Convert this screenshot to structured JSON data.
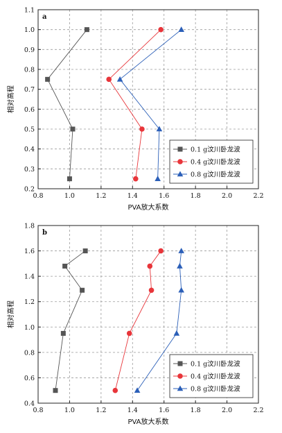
{
  "chart_data": [
    {
      "type": "line",
      "panel_label": "a",
      "xlabel": "PVA放大系数",
      "ylabel": "相对高程",
      "xlim": [
        0.8,
        2.2
      ],
      "ylim": [
        0.2,
        1.1
      ],
      "xticks": [
        "0.8",
        "1.0",
        "1.2",
        "1.4",
        "1.6",
        "1.8",
        "2.0",
        "2.2"
      ],
      "yticks": [
        "0.2",
        "0.3",
        "0.4",
        "0.5",
        "0.6",
        "0.7",
        "0.8",
        "0.9",
        "1.0",
        "1.1"
      ],
      "grid": true,
      "legend_position": "bottom-right",
      "series": [
        {
          "name": "0.1 g汶川卧龙波",
          "color": "#555555",
          "marker": "square",
          "points": [
            [
              1.11,
              1.0
            ],
            [
              0.86,
              0.75
            ],
            [
              1.02,
              0.5
            ],
            [
              1.0,
              0.25
            ]
          ]
        },
        {
          "name": "0.4 g汶川卧龙波",
          "color": "#e8353a",
          "marker": "circle",
          "points": [
            [
              1.58,
              1.0
            ],
            [
              1.25,
              0.75
            ],
            [
              1.46,
              0.5
            ],
            [
              1.42,
              0.25
            ]
          ]
        },
        {
          "name": "0.8 g汶川卧龙波",
          "color": "#2b5fb8",
          "marker": "triangle",
          "points": [
            [
              1.71,
              1.0
            ],
            [
              1.32,
              0.75
            ],
            [
              1.57,
              0.5
            ],
            [
              1.56,
              0.25
            ]
          ]
        }
      ]
    },
    {
      "type": "line",
      "panel_label": "b",
      "xlabel": "PVA放大系数",
      "ylabel": "相对高程",
      "xlim": [
        0.8,
        2.2
      ],
      "ylim": [
        0.4,
        1.8
      ],
      "xticks": [
        "0.8",
        "1.0",
        "1.2",
        "1.4",
        "1.6",
        "1.8",
        "2.0",
        "2.2"
      ],
      "yticks": [
        "0.4",
        "0.6",
        "0.8",
        "1.0",
        "1.2",
        "1.4",
        "1.6",
        "1.8"
      ],
      "grid": true,
      "legend_position": "bottom-right",
      "series": [
        {
          "name": "0.1 g汶川卧龙波",
          "color": "#555555",
          "marker": "square",
          "points": [
            [
              1.1,
              1.6
            ],
            [
              0.97,
              1.48
            ],
            [
              1.08,
              1.29
            ],
            [
              0.96,
              0.95
            ],
            [
              0.91,
              0.5
            ]
          ]
        },
        {
          "name": "0.4 g汶川卧龙波",
          "color": "#e8353a",
          "marker": "circle",
          "points": [
            [
              1.58,
              1.6
            ],
            [
              1.51,
              1.48
            ],
            [
              1.52,
              1.29
            ],
            [
              1.38,
              0.95
            ],
            [
              1.29,
              0.5
            ]
          ]
        },
        {
          "name": "0.8 g汶川卧龙波",
          "color": "#2b5fb8",
          "marker": "triangle",
          "points": [
            [
              1.71,
              1.6
            ],
            [
              1.7,
              1.48
            ],
            [
              1.71,
              1.29
            ],
            [
              1.68,
              0.95
            ],
            [
              1.43,
              0.5
            ]
          ]
        }
      ]
    }
  ]
}
